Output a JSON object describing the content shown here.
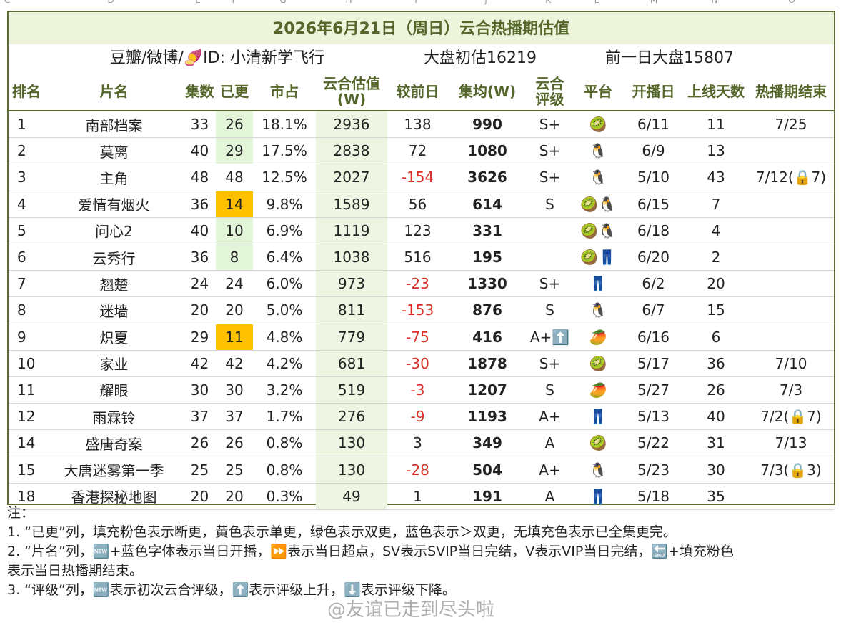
{
  "column_letters": [
    "C",
    "D",
    "E",
    "F",
    "G",
    "H",
    "I",
    "J",
    "K",
    "L",
    "M",
    "N",
    "O"
  ],
  "header": {
    "title": "2026年6月21日（周日）云合热播期估值",
    "source": "豆瓣/微博/🍠ID: 小清新学飞行",
    "estimate": "大盘初估16219",
    "previous": "前一日大盘15807"
  },
  "table": {
    "columns": [
      "排名",
      "片名",
      "集数",
      "已更",
      "市占",
      "云合估值\n(W)",
      "较前日",
      "集均(W)",
      "云合\n评级",
      "平台",
      "开播日",
      "上线天数",
      "热播期结束"
    ],
    "rows": [
      [
        "1",
        "南部档案",
        "33",
        "26",
        "18.1%",
        "2936",
        "138",
        "990",
        "S+",
        "🥝",
        "6/11",
        "11",
        "7/25"
      ],
      [
        "2",
        "莫离",
        "40",
        "29",
        "17.5%",
        "2838",
        "72",
        "1080",
        "S+",
        "🐧",
        "6/9",
        "13",
        null
      ],
      [
        "3",
        "主角",
        "48",
        "48",
        "12.5%",
        "2027",
        "-154",
        "3626",
        "S+",
        "🐧",
        "5/10",
        "43",
        "7/12(🔒7)"
      ],
      [
        "4",
        "爱情有烟火",
        "36",
        "14",
        "9.8%",
        "1589",
        "56",
        "614",
        "S",
        "🥝🐧",
        "6/15",
        "7",
        null
      ],
      [
        "5",
        "问心2",
        "40",
        "10",
        "6.9%",
        "1119",
        "123",
        "331",
        null,
        "🥝🐧",
        "6/18",
        "4",
        null
      ],
      [
        "6",
        "云秀行",
        "36",
        "8",
        "6.4%",
        "1038",
        "516",
        "195",
        null,
        "🥝👖",
        "6/20",
        "2",
        null
      ],
      [
        "7",
        "翘楚",
        "24",
        "24",
        "6.0%",
        "973",
        "-23",
        "1330",
        "S+",
        "👖",
        "6/2",
        "20",
        null
      ],
      [
        "8",
        "迷墙",
        "20",
        "20",
        "5.0%",
        "811",
        "-153",
        "876",
        "S",
        "🐧",
        "6/7",
        "15",
        null
      ],
      [
        "9",
        "炽夏",
        "29",
        "11",
        "4.8%",
        "779",
        "-75",
        "416",
        "A+⬆️",
        "🥭",
        "6/16",
        "6",
        null
      ],
      [
        "10",
        "家业",
        "42",
        "42",
        "4.2%",
        "681",
        "-30",
        "1878",
        "S+",
        "🥝",
        "5/17",
        "36",
        "7/10"
      ],
      [
        "11",
        "耀眼",
        "30",
        "30",
        "3.2%",
        "519",
        "-3",
        "1207",
        "S",
        "🥭",
        "5/27",
        "26",
        "7/3"
      ],
      [
        "12",
        "雨霖铃",
        "37",
        "37",
        "1.7%",
        "276",
        "-9",
        "1193",
        "A+",
        "👖",
        "5/13",
        "40",
        "7/2(🔒7)"
      ],
      [
        "14",
        "盛唐奇案",
        "26",
        "26",
        "0.8%",
        "130",
        "3",
        "349",
        "A",
        "🥝",
        "5/22",
        "31",
        "7/13"
      ],
      [
        "15",
        "大唐迷雾第一季",
        "25",
        "25",
        "0.8%",
        "130",
        "-28",
        "504",
        "A+",
        "🐧",
        "5/23",
        "30",
        "7/3(🔒3)"
      ],
      [
        "18",
        "香港探秘地图",
        "20",
        "20",
        "0.3%",
        "49",
        "1",
        "191",
        "A",
        "👖",
        "5/18",
        "35",
        null
      ]
    ],
    "updated_fill": [
      "#e2f5d9",
      "#e2f5d9",
      null,
      "#ffc000",
      "#e2f5d9",
      "#e2f5d9",
      null,
      null,
      "#ffc000",
      null,
      null,
      null,
      null,
      null,
      null
    ]
  },
  "notes": {
    "heading": "注：",
    "lines": [
      "1. “已更”列，填充粉色表示断更，黄色表示单更，绿色表示双更，蓝色表示＞双更，无填充色表示已全集更完。",
      "2. “片名”列，🆕+蓝色字体表示当日开播，⏩表示当日超点，SV表示SVIP当日完结，V表示VIP当日完结，🔚+填充粉色",
      "表示当日热播期结束。",
      "3. “评级”列，🆕表示初次云合评级，⬆️表示评级上升，⬇️表示评级下降。"
    ]
  },
  "watermark": "@友谊已走到尽头啦"
}
